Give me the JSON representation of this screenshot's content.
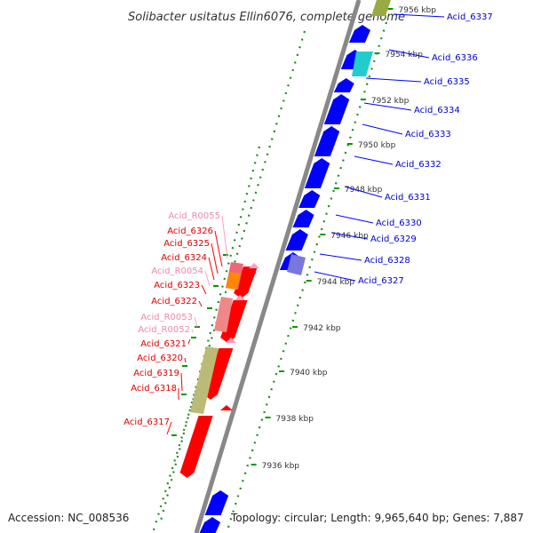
{
  "title": "Solibacter usitatus Ellin6076, complete genome",
  "accession": "Accession: NC_008536",
  "topology": "Topology: circular; Length: 9,965,640 bp; Genes: 7,887",
  "colors": {
    "forward_gene": "#0000ff",
    "reverse_gene": "#ff0000",
    "rna_gene": "#ff9ec4",
    "forward_label": "#0000cc",
    "reverse_label": "#dd0000",
    "rna_label": "#ee88aa",
    "backbone": "#888888",
    "scale_dots": "#228822",
    "tick": "#009900"
  },
  "scale_ticks": [
    "7936 kbp",
    "7938 kbp",
    "7940 kbp",
    "7942 kbp",
    "7944 kbp",
    "7946 kbp",
    "7948 kbp",
    "7950 kbp",
    "7952 kbp",
    "7954 kbp",
    "7956 kbp"
  ],
  "forward_genes": [
    "Acid_6337",
    "Acid_6336",
    "Acid_6335",
    "Acid_6334",
    "Acid_6333",
    "Acid_6332",
    "Acid_6331",
    "Acid_6330",
    "Acid_6329",
    "Acid_6328",
    "Acid_6327"
  ],
  "reverse_genes": [
    "Acid_R0055",
    "Acid_6326",
    "Acid_6325",
    "Acid_6324",
    "Acid_R0054",
    "Acid_6323",
    "Acid_6322",
    "Acid_R0053",
    "Acid_R0052",
    "Acid_6321",
    "Acid_6320",
    "Acid_6319",
    "Acid_6318",
    "Acid_6317"
  ]
}
